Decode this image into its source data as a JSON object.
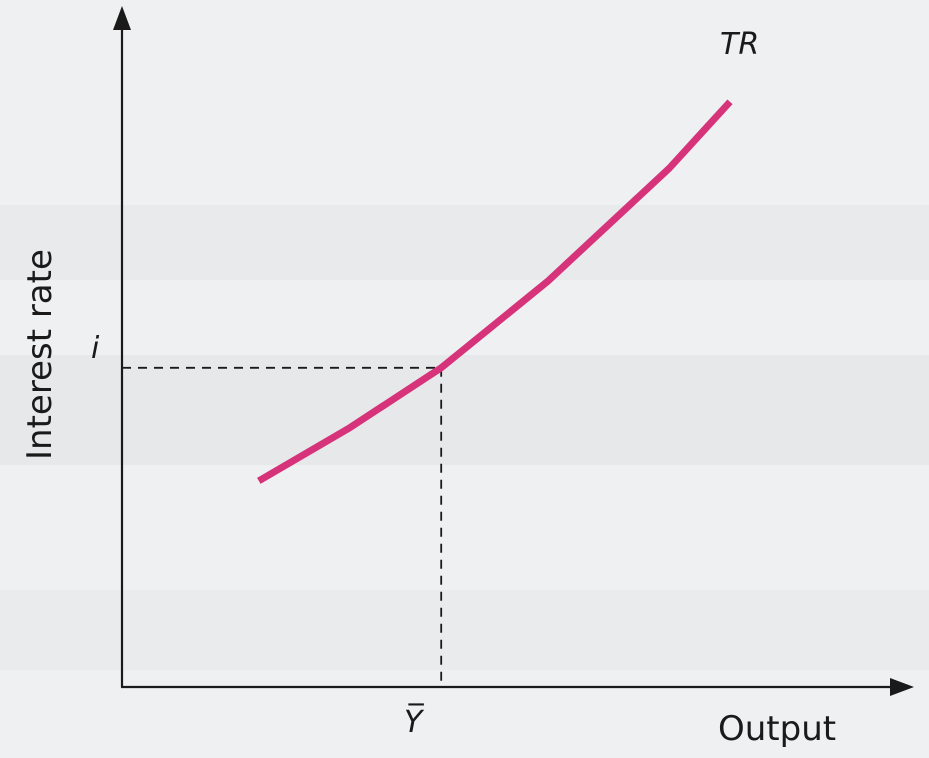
{
  "colors": {
    "background": "#eef0f1",
    "axis": "#1a1a1a",
    "curve": "#d6337a"
  },
  "chart_data": {
    "type": "line",
    "title": "",
    "xlabel": "Output",
    "ylabel": "Interest rate",
    "grid": false,
    "series": [
      {
        "name": "TR",
        "points": [
          [
            0.18,
            0.31
          ],
          [
            0.3,
            0.39
          ],
          [
            0.42,
            0.48
          ],
          [
            0.56,
            0.61
          ],
          [
            0.72,
            0.78
          ],
          [
            0.8,
            0.88
          ]
        ]
      }
    ],
    "reference": {
      "x_label": "Y̅",
      "y_label": "i",
      "x": 0.42,
      "y": 0.48
    }
  }
}
